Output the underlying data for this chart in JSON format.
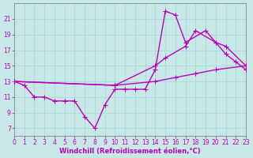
{
  "bg_color": "#c8e8e8",
  "grid_color": "#a8d8d8",
  "line_color": "#bb00bb",
  "marker": "+",
  "markersize": 4,
  "linewidth": 1.0,
  "xlabel": "Windchill (Refroidissement éolien,°C)",
  "xlabel_fontsize": 6,
  "tick_fontsize": 5.5,
  "ylim": [
    6,
    23
  ],
  "xlim": [
    0,
    23
  ],
  "yticks": [
    7,
    9,
    11,
    13,
    15,
    17,
    19,
    21
  ],
  "xticks": [
    0,
    1,
    2,
    3,
    4,
    5,
    6,
    7,
    8,
    9,
    10,
    11,
    12,
    13,
    14,
    15,
    16,
    17,
    18,
    19,
    20,
    21,
    22,
    23
  ],
  "line1_x": [
    0,
    1,
    2,
    3,
    4,
    5,
    6,
    7,
    8,
    9,
    10,
    11,
    12,
    13,
    14,
    15,
    16,
    17,
    19,
    20,
    21,
    22,
    23
  ],
  "line1_y": [
    13,
    12.5,
    11,
    11,
    10.5,
    10.5,
    10.5,
    8.5,
    7,
    10,
    12,
    12,
    12,
    12,
    14.5,
    22,
    21.5,
    18,
    19.5,
    18,
    16.5,
    15.5,
    14.5
  ],
  "line2_x": [
    0,
    10,
    14,
    15,
    17,
    18,
    20,
    21,
    23
  ],
  "line2_y": [
    13,
    12.5,
    15,
    16,
    17.5,
    19.5,
    18,
    17.5,
    15
  ],
  "line3_x": [
    0,
    10,
    14,
    16,
    18,
    20,
    23
  ],
  "line3_y": [
    13,
    12.5,
    13,
    13.5,
    14,
    14.5,
    15
  ]
}
